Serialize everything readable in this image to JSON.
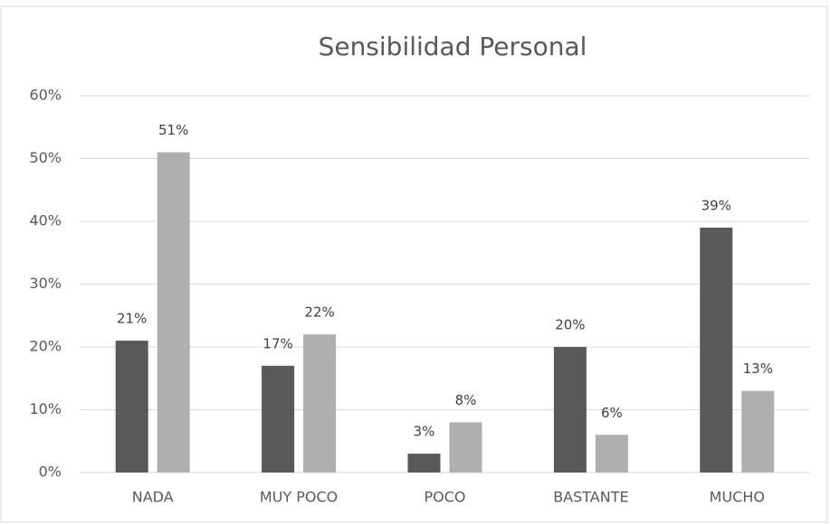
{
  "chart_data": {
    "type": "bar",
    "title": "Sensibilidad Personal",
    "categories": [
      "NADA",
      "MUY POCO",
      "POCO",
      "BASTANTE",
      "MUCHO"
    ],
    "series": [
      {
        "color": "#595959",
        "values": [
          21,
          17,
          3,
          20,
          39
        ],
        "value_labels": [
          "21%",
          "17%",
          "3%",
          "20%",
          "39%"
        ]
      },
      {
        "color": "#afafaf",
        "values": [
          51,
          22,
          8,
          6,
          13
        ],
        "value_labels": [
          "51%",
          "22%",
          "8%",
          "6%",
          "13%"
        ]
      }
    ],
    "ylim": [
      0,
      60
    ],
    "yticks": [
      {
        "value": 0,
        "label": "0%"
      },
      {
        "value": 10,
        "label": "10%"
      },
      {
        "value": 20,
        "label": "20%"
      },
      {
        "value": 30,
        "label": "30%"
      },
      {
        "value": 40,
        "label": "40%"
      },
      {
        "value": 50,
        "label": "50%"
      },
      {
        "value": 60,
        "label": "60%"
      }
    ],
    "grid": true
  }
}
